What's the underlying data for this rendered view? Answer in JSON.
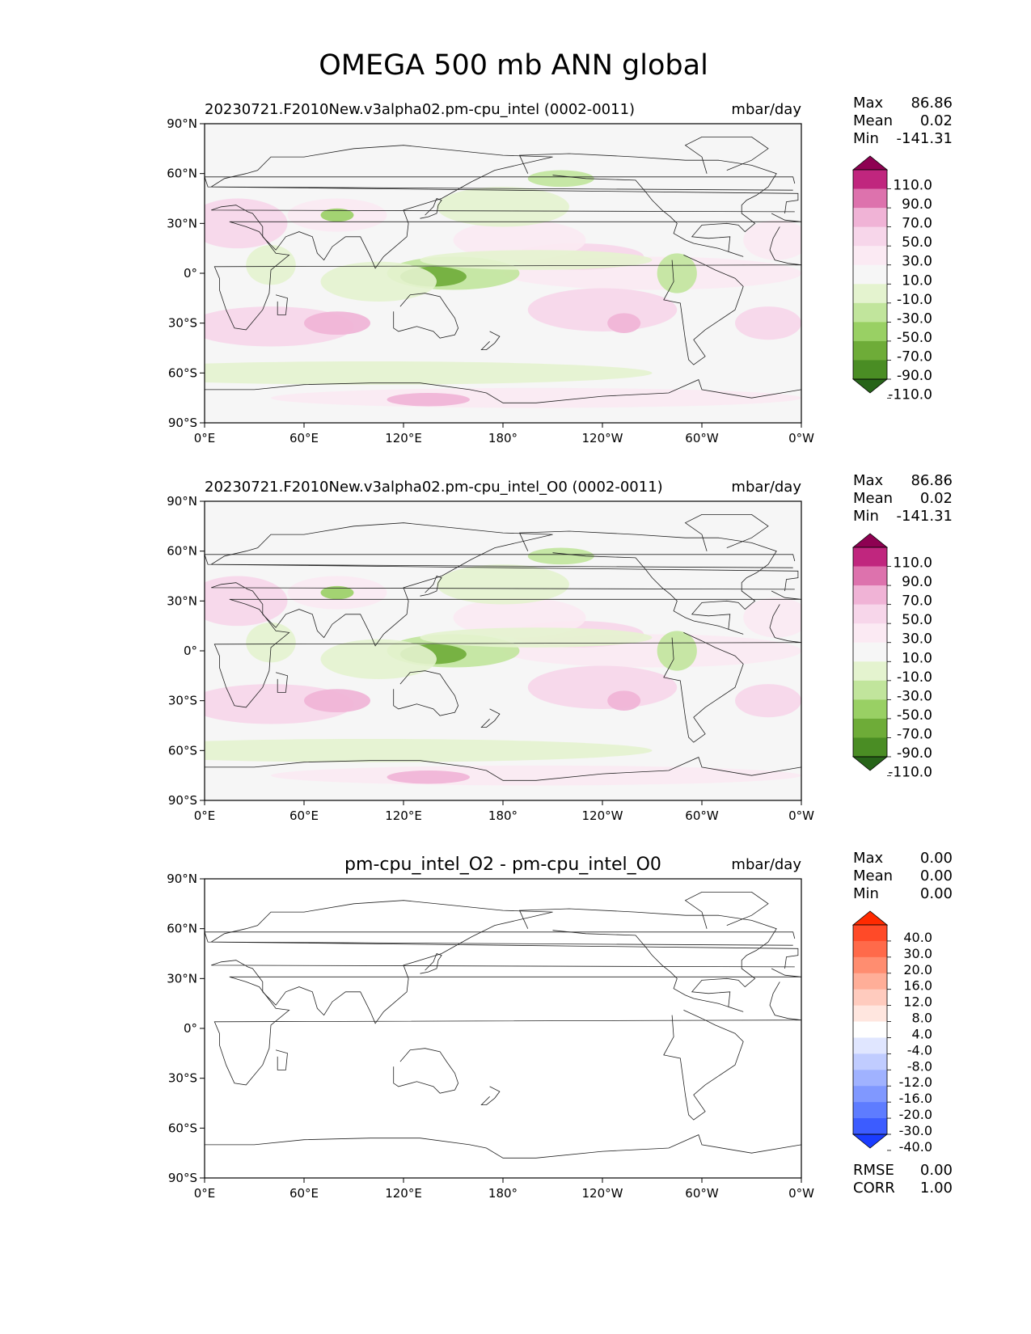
{
  "chart_data": {
    "type": "heatmap",
    "title": "OMEGA 500 mb ANN global",
    "lat_ticks": [
      "90°N",
      "60°N",
      "30°N",
      "0°",
      "30°S",
      "60°S",
      "90°S"
    ],
    "lon_ticks": [
      "0°E",
      "60°E",
      "120°E",
      "180°",
      "120°W",
      "60°W",
      "0°W"
    ],
    "lat_range": [
      -90,
      90
    ],
    "lon_range": [
      0,
      360
    ],
    "panels": [
      {
        "title": "20230721.F2010New.v3alpha02.pm-cpu_intel (0002-0011)",
        "units": "mbar/day",
        "stats": [
          {
            "label": "Max",
            "value": "86.86"
          },
          {
            "label": "Mean",
            "value": "0.02"
          },
          {
            "label": "Min",
            "value": "-141.31"
          }
        ],
        "colorbar": {
          "levels": [
            "110.0",
            "90.0",
            "70.0",
            "50.0",
            "30.0",
            "10.0",
            "-10.0",
            "-30.0",
            "-50.0",
            "-70.0",
            "-90.0",
            "-110.0"
          ],
          "colors": [
            "#8e0152",
            "#c0267e",
            "#dd72ad",
            "#f0b3d6",
            "#f7d6ea",
            "#fbeaf3",
            "#f6f6f6",
            "#e4f3cf",
            "#c1e59c",
            "#99d064",
            "#6eac38",
            "#4a8d24",
            "#276419"
          ],
          "extend": "both"
        }
      },
      {
        "title": "20230721.F2010New.v3alpha02.pm-cpu_intel_O0 (0002-0011)",
        "units": "mbar/day",
        "stats": [
          {
            "label": "Max",
            "value": "86.86"
          },
          {
            "label": "Mean",
            "value": "0.02"
          },
          {
            "label": "Min",
            "value": "-141.31"
          }
        ],
        "colorbar": {
          "levels": [
            "110.0",
            "90.0",
            "70.0",
            "50.0",
            "30.0",
            "10.0",
            "-10.0",
            "-30.0",
            "-50.0",
            "-70.0",
            "-90.0",
            "-110.0"
          ],
          "colors": [
            "#8e0152",
            "#c0267e",
            "#dd72ad",
            "#f0b3d6",
            "#f7d6ea",
            "#fbeaf3",
            "#f6f6f6",
            "#e4f3cf",
            "#c1e59c",
            "#99d064",
            "#6eac38",
            "#4a8d24",
            "#276419"
          ],
          "extend": "both"
        }
      },
      {
        "title": "pm-cpu_intel_O2 - pm-cpu_intel_O0",
        "units": "mbar/day",
        "stats": [
          {
            "label": "Max",
            "value": "0.00"
          },
          {
            "label": "Mean",
            "value": "0.00"
          },
          {
            "label": "Min",
            "value": "0.00"
          }
        ],
        "extra_stats": [
          {
            "label": "RMSE",
            "value": "0.00"
          },
          {
            "label": "CORR",
            "value": "1.00"
          }
        ],
        "colorbar": {
          "levels": [
            "40.0",
            "30.0",
            "20.0",
            "16.0",
            "12.0",
            "8.0",
            "4.0",
            "-4.0",
            "-8.0",
            "-12.0",
            "-16.0",
            "-20.0",
            "-30.0",
            "-40.0"
          ],
          "colors": [
            "#ff2a00",
            "#ff4a28",
            "#ff6a4a",
            "#ff8d70",
            "#ffae98",
            "#ffcbbe",
            "#ffe6df",
            "#ffffff",
            "#e0e6ff",
            "#c0ccff",
            "#a0b2ff",
            "#8098ff",
            "#5e7cff",
            "#3c5cff",
            "#1a3cff"
          ],
          "extend": "both"
        }
      }
    ]
  }
}
